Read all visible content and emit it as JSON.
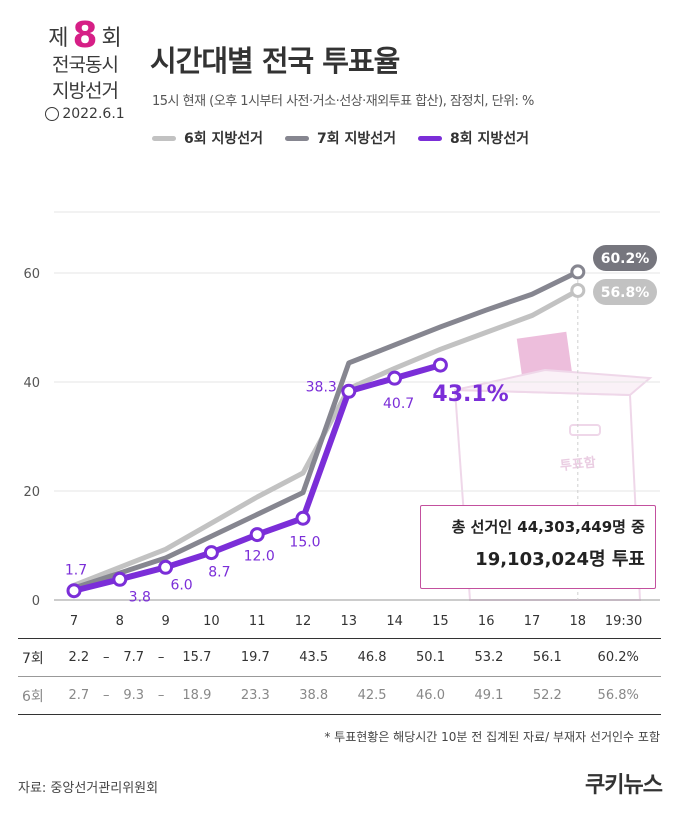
{
  "logo": {
    "prefix": "제",
    "number": "8",
    "suffix": "회",
    "line1": "전국동시",
    "line2": "지방선거",
    "date": "2022.6.1"
  },
  "title": "시간대별 전국 투표율",
  "subtitle": "15시 현재 (오후 1시부터 사전·거소·선상·재외투표 합산), 잠정치,  단위: %",
  "legend": [
    {
      "label": "6회 지방선거",
      "color": "#c2c2c2"
    },
    {
      "label": "7회 지방선거",
      "color": "#868690"
    },
    {
      "label": "8회 지방선거",
      "color": "#7b2ed8"
    }
  ],
  "chart_data": {
    "type": "line",
    "categories": [
      "7",
      "8",
      "9",
      "10",
      "11",
      "12",
      "13",
      "14",
      "15",
      "16",
      "17",
      "18",
      "19:30"
    ],
    "series": [
      {
        "name": "6회 지방선거",
        "color": "#c2c2c2",
        "values": [
          2.7,
          null,
          9.3,
          null,
          18.9,
          23.3,
          38.8,
          42.5,
          46.0,
          49.1,
          52.2,
          56.8,
          null
        ]
      },
      {
        "name": "7회 지방선거",
        "color": "#868690",
        "values": [
          2.2,
          null,
          7.7,
          null,
          15.7,
          19.7,
          43.5,
          46.8,
          50.1,
          53.2,
          56.1,
          60.2,
          null
        ]
      },
      {
        "name": "8회 지방선거",
        "color": "#7b2ed8",
        "values": [
          1.7,
          3.8,
          6.0,
          8.7,
          12.0,
          15.0,
          38.3,
          40.7,
          43.1,
          null,
          null,
          null,
          null
        ]
      }
    ],
    "point_labels_8": [
      "1.7",
      "3.8",
      "6.0",
      "8.7",
      "12.0",
      "15.0",
      "38.3",
      "40.7"
    ],
    "end_labels": {
      "6": "56.8%",
      "7": "60.2%",
      "8": "43.1%"
    },
    "y_ticks": [
      "0",
      "20",
      "40",
      "60"
    ],
    "ylim": [
      0,
      60
    ],
    "grid": "horizontal"
  },
  "total_box": {
    "line1": "총 선거인 44,303,449명 중",
    "line2": "19,103,024명 투표"
  },
  "table": {
    "rows": [
      {
        "label": "7회",
        "cells": [
          "2.2",
          "–",
          "7.7",
          "–",
          "15.7",
          "19.7",
          "43.5",
          "46.8",
          "50.1",
          "53.2",
          "56.1",
          "60.2%",
          ""
        ]
      },
      {
        "label": "6회",
        "cells": [
          "2.7",
          "–",
          "9.3",
          "–",
          "18.9",
          "23.3",
          "38.8",
          "42.5",
          "46.0",
          "49.1",
          "52.2",
          "56.8%",
          ""
        ]
      }
    ]
  },
  "footnote": "* 투표현황은 해당시간 10분 전 집계된 자료/ 부재자 선거인수 포함",
  "source": "자료: 중앙선거관리위원회",
  "brand": "쿠키뉴스"
}
